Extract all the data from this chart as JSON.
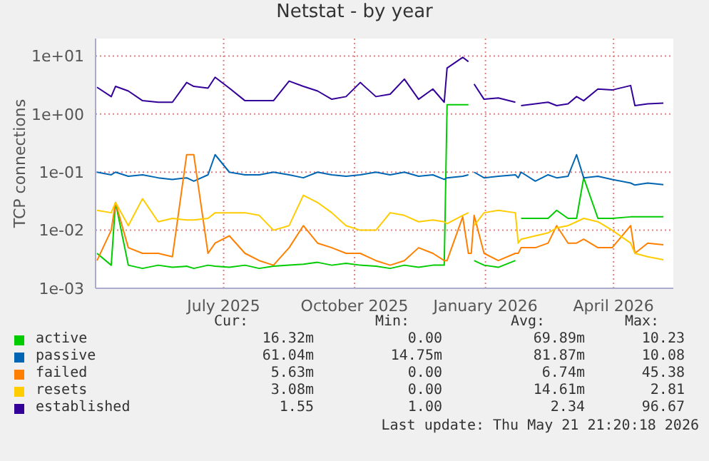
{
  "chart_data": {
    "type": "line",
    "title": "Netstat - by year",
    "ylabel": "TCP connections",
    "log": true,
    "grid": true,
    "legend": "bottom",
    "x": [
      "2025-04-18",
      "2025-04-28",
      "2025-05-01",
      "2025-05-10",
      "2025-05-20",
      "2025-05-31",
      "2025-06-10",
      "2025-06-20",
      "2025-06-25",
      "2025-07-05",
      "2025-07-10",
      "2025-07-20",
      "2025-07-31",
      "2025-08-10",
      "2025-08-20",
      "2025-08-31",
      "2025-09-10",
      "2025-09-20",
      "2025-09-30",
      "2025-10-10",
      "2025-10-20",
      "2025-10-31",
      "2025-11-10",
      "2025-11-20",
      "2025-11-30",
      "2025-12-10",
      "2025-12-18",
      "2025-12-20",
      "2025-12-31",
      "2026-01-04",
      "2026-01-06",
      "2026-01-08",
      "2026-01-15",
      "2026-01-25",
      "2026-02-06",
      "2026-02-08",
      "2026-02-10",
      "2026-02-20",
      "2026-03-01",
      "2026-03-07",
      "2026-03-15",
      "2026-03-21",
      "2026-03-26",
      "2026-04-05",
      "2026-04-15",
      "2026-04-28",
      "2026-05-01",
      "2026-05-10",
      "2026-05-21"
    ],
    "xlim": [
      "2025-04-17",
      "2026-05-28"
    ],
    "xticks": [
      {
        "value": "2025-07-16",
        "label": "July 2025"
      },
      {
        "value": "2025-10-16",
        "label": "October 2025"
      },
      {
        "value": "2026-01-16",
        "label": "January 2026"
      },
      {
        "value": "2026-04-16",
        "label": "April 2026"
      }
    ],
    "ylim": [
      0.001,
      20
    ],
    "yticks": [
      {
        "value": 0.001,
        "label": "1e-03"
      },
      {
        "value": 0.01,
        "label": "1e-02"
      },
      {
        "value": 0.1,
        "label": "1e-01"
      },
      {
        "value": 1,
        "label": "1e+00"
      },
      {
        "value": 10,
        "label": "1e+01"
      }
    ],
    "series": [
      {
        "name": "active",
        "color": "#00cc00",
        "values": [
          0.004,
          0.0025,
          0.03,
          0.0025,
          0.0022,
          0.0025,
          0.0023,
          0.0024,
          0.0022,
          0.0025,
          0.0024,
          0.0023,
          0.0025,
          0.0022,
          0.0024,
          0.0025,
          0.0026,
          0.0028,
          0.0025,
          0.0027,
          0.0025,
          0.0024,
          0.0022,
          0.0025,
          0.0023,
          0.0025,
          0.0025,
          1.45,
          1.45,
          1.45,
          null,
          0.003,
          0.0025,
          0.0023,
          0.003,
          null,
          0.016,
          0.016,
          0.016,
          0.022,
          0.016,
          0.016,
          0.08,
          0.016,
          0.016,
          0.017,
          0.017,
          0.017,
          0.017
        ]
      },
      {
        "name": "passive",
        "color": "#0066b3",
        "values": [
          0.1,
          0.09,
          0.1,
          0.085,
          0.09,
          0.08,
          0.075,
          0.08,
          0.07,
          0.09,
          0.2,
          0.1,
          0.09,
          0.09,
          0.1,
          0.09,
          0.08,
          0.1,
          0.09,
          0.085,
          0.09,
          0.1,
          0.09,
          0.1,
          0.085,
          0.09,
          0.075,
          0.08,
          0.085,
          0.09,
          null,
          0.1,
          0.08,
          0.085,
          0.09,
          0.08,
          0.1,
          0.07,
          0.09,
          0.08,
          0.085,
          0.2,
          0.08,
          0.085,
          0.075,
          0.065,
          0.06,
          0.065,
          0.061
        ]
      },
      {
        "name": "failed",
        "color": "#ff8000",
        "values": [
          0.003,
          0.01,
          0.03,
          0.005,
          0.004,
          0.004,
          0.0035,
          0.2,
          0.2,
          0.004,
          0.006,
          0.008,
          0.004,
          0.003,
          0.0025,
          0.005,
          0.012,
          0.006,
          0.005,
          0.004,
          0.004,
          0.003,
          0.0025,
          0.003,
          0.005,
          0.004,
          0.003,
          0.003,
          0.017,
          0.004,
          0.004,
          0.018,
          0.004,
          0.003,
          0.004,
          0.004,
          0.005,
          0.005,
          0.006,
          0.012,
          0.006,
          0.006,
          0.007,
          0.005,
          0.005,
          0.012,
          0.004,
          0.006,
          0.0056
        ]
      },
      {
        "name": "resets",
        "color": "#ffcc00",
        "values": [
          0.022,
          0.02,
          0.03,
          0.012,
          0.035,
          0.014,
          0.016,
          0.015,
          0.015,
          0.016,
          0.02,
          0.02,
          0.02,
          0.018,
          0.01,
          0.012,
          0.04,
          0.03,
          0.02,
          0.012,
          0.01,
          0.01,
          0.02,
          0.018,
          0.014,
          0.015,
          0.014,
          0.013,
          0.018,
          0.02,
          null,
          0.012,
          0.02,
          0.022,
          0.02,
          0.006,
          0.007,
          0.008,
          0.009,
          0.011,
          0.012,
          0.014,
          0.016,
          0.014,
          0.01,
          0.006,
          0.004,
          0.0035,
          0.0031
        ]
      },
      {
        "name": "established",
        "color": "#330099",
        "values": [
          2.9,
          2.0,
          3.0,
          2.5,
          1.7,
          1.6,
          1.6,
          3.5,
          3.0,
          2.8,
          4.3,
          2.8,
          1.7,
          1.7,
          1.7,
          3.7,
          3.0,
          2.5,
          1.8,
          2.0,
          3.5,
          2.0,
          2.2,
          4.0,
          1.8,
          2.7,
          1.6,
          6.2,
          9.5,
          8.0,
          null,
          3.3,
          1.8,
          1.9,
          1.6,
          null,
          1.4,
          1.5,
          1.6,
          1.4,
          1.5,
          2.0,
          1.7,
          2.7,
          2.6,
          3.1,
          1.4,
          1.5,
          1.55
        ]
      }
    ],
    "annotations": [
      "Cur:",
      "Min:",
      "Avg:",
      "Max:",
      "16.32m",
      "0.00",
      "69.89m",
      "10.23",
      "61.04m",
      "14.75m",
      "81.87m",
      "10.08",
      "5.63m",
      "0.00",
      "6.74m",
      "45.38",
      "3.08m",
      "0.00",
      "14.61m",
      "2.81",
      "1.55",
      "1.00",
      "2.34",
      "96.67",
      "Last update: Thu May 21 21:20:18 2026"
    ]
  }
}
